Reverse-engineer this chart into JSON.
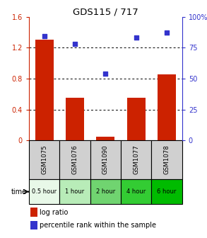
{
  "title": "GDS115 / 717",
  "samples": [
    "GSM1075",
    "GSM1076",
    "GSM1090",
    "GSM1077",
    "GSM1078"
  ],
  "time_labels": [
    "0.5 hour",
    "1 hour",
    "2 hour",
    "4 hour",
    "6 hour"
  ],
  "log_ratio": [
    1.3,
    0.55,
    0.05,
    0.55,
    0.85
  ],
  "percentile_rank": [
    84,
    78,
    54,
    83,
    87
  ],
  "bar_color": "#cc2200",
  "dot_color": "#3333cc",
  "left_ylim": [
    0,
    1.6
  ],
  "right_ylim": [
    0,
    100
  ],
  "left_yticks": [
    0,
    0.4,
    0.8,
    1.2,
    1.6
  ],
  "right_yticks": [
    0,
    25,
    50,
    75,
    100
  ],
  "right_yticklabels": [
    "0",
    "25",
    "50",
    "75",
    "100%"
  ],
  "time_bg_colors": [
    "#e8f8e8",
    "#b8ecb8",
    "#70d470",
    "#33cc33",
    "#00bb00"
  ],
  "sample_bg_color": "#d0d0d0",
  "legend_bar_label": "log ratio",
  "legend_dot_label": "percentile rank within the sample",
  "time_label": "time",
  "dotted_grid_values": [
    0.4,
    0.8,
    1.2
  ]
}
